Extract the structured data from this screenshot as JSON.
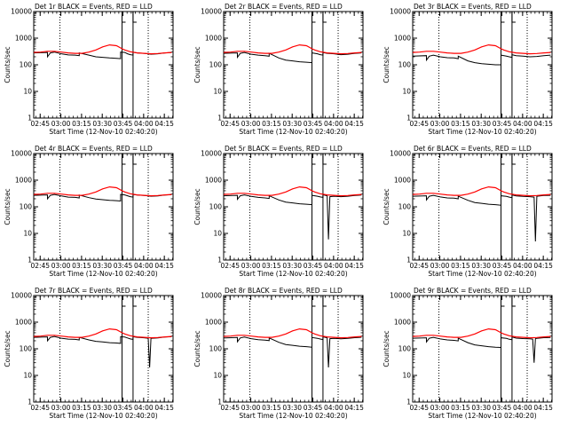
{
  "figure": {
    "panel_titles": [
      "Det 1r BLACK = Events, RED = LLD",
      "Det 2r BLACK = Events, RED = LLD",
      "Det 3r BLACK = Events, RED = LLD",
      "Det 4r BLACK = Events, RED = LLD",
      "Det 5r BLACK = Events, RED = LLD",
      "Det 6r BLACK = Events, RED = LLD",
      "Det 7r BLACK = Events, RED = LLD",
      "Det 8r BLACK = Events, RED = LLD",
      "Det 9r BLACK = Events, RED = LLD"
    ],
    "xlabel": "Start Time (12-Nov-10 02:40:20)",
    "ylabel": "Counts/sec"
  },
  "colors": {
    "events": "#000000",
    "lld": "#ff0000",
    "background": "#ffffff"
  },
  "chart_data": {
    "type": "line",
    "x_unit": "minutes after 02:40:20 (start time 12-Nov-10 02:40:20)",
    "x_ticks": [
      4.67,
      19.67,
      34.67,
      49.67,
      64.67,
      79.67,
      94.67
    ],
    "x_tick_labels": [
      "02:45",
      "03:00",
      "03:15",
      "03:30",
      "03:45",
      "04:00",
      "04:15"
    ],
    "xlim": [
      0,
      101
    ],
    "y_scale": "log",
    "ylim": [
      1,
      10000
    ],
    "y_ticks": [
      1,
      10,
      100,
      1000,
      10000
    ],
    "y_tick_labels": [
      "1",
      "10",
      "100",
      "1000",
      "10000"
    ],
    "dotted_vertical_lines_x": [
      19,
      83
    ],
    "solid_vertical_lines_x": [
      64,
      72
    ],
    "lld_series": {
      "name": "RED = LLD",
      "x": [
        0,
        5,
        10,
        15,
        20,
        25,
        30,
        35,
        40,
        45,
        50,
        55,
        60,
        64,
        66,
        70,
        75,
        80,
        85,
        90,
        95,
        100
      ],
      "y": [
        290,
        300,
        320,
        320,
        300,
        280,
        270,
        270,
        300,
        360,
        470,
        560,
        520,
        400,
        360,
        310,
        280,
        270,
        260,
        265,
        280,
        290
      ]
    },
    "panels": [
      {
        "name": "Det 1r",
        "events_x": [
          0,
          10,
          10,
          12,
          15,
          20,
          25,
          30,
          33,
          33,
          40,
          45,
          50,
          55,
          60,
          63,
          63,
          66,
          68,
          70,
          72,
          72,
          75,
          80,
          85,
          90,
          95,
          100
        ],
        "events_y": [
          280,
          290,
          200,
          280,
          300,
          260,
          235,
          230,
          220,
          280,
          230,
          200,
          190,
          180,
          175,
          170,
          300,
          290,
          260,
          240,
          230,
          300,
          280,
          270,
          250,
          260,
          280,
          290
        ]
      },
      {
        "name": "Det 2r",
        "events_x": [
          0,
          10,
          10,
          12,
          15,
          20,
          25,
          30,
          33,
          33,
          40,
          45,
          50,
          55,
          60,
          64,
          64,
          68,
          70,
          72,
          72,
          75,
          80,
          85,
          90,
          95,
          100
        ],
        "events_y": [
          270,
          280,
          190,
          270,
          290,
          250,
          230,
          220,
          210,
          270,
          180,
          150,
          140,
          130,
          125,
          120,
          280,
          260,
          240,
          230,
          290,
          270,
          260,
          240,
          250,
          270,
          280
        ]
      },
      {
        "name": "Det 3r",
        "events_x": [
          0,
          10,
          10,
          12,
          15,
          20,
          25,
          30,
          33,
          33,
          40,
          45,
          50,
          55,
          60,
          64,
          64,
          68,
          70,
          72,
          72,
          75,
          80,
          85,
          90,
          95,
          100
        ],
        "events_y": [
          210,
          220,
          150,
          210,
          230,
          200,
          185,
          180,
          170,
          210,
          140,
          120,
          110,
          105,
          100,
          100,
          230,
          210,
          200,
          190,
          240,
          220,
          210,
          200,
          205,
          220,
          230
        ]
      },
      {
        "name": "Det 4r",
        "events_x": [
          0,
          10,
          10,
          12,
          15,
          20,
          25,
          30,
          33,
          33,
          40,
          45,
          50,
          55,
          60,
          63,
          63,
          66,
          68,
          70,
          72,
          72,
          75,
          80,
          85,
          90,
          95,
          100
        ],
        "events_y": [
          270,
          280,
          200,
          270,
          290,
          255,
          230,
          225,
          215,
          275,
          220,
          195,
          185,
          175,
          170,
          165,
          290,
          280,
          260,
          240,
          230,
          290,
          275,
          265,
          250,
          255,
          275,
          285
        ]
      },
      {
        "name": "Det 5r",
        "events_x": [
          0,
          10,
          10,
          12,
          15,
          20,
          25,
          30,
          33,
          33,
          40,
          45,
          50,
          55,
          60,
          64,
          64,
          68,
          70,
          72,
          72,
          75,
          76,
          77,
          80,
          85,
          90,
          95,
          100
        ],
        "events_y": [
          260,
          270,
          190,
          260,
          280,
          245,
          225,
          215,
          205,
          260,
          180,
          150,
          140,
          130,
          125,
          120,
          270,
          250,
          235,
          225,
          285,
          260,
          6,
          240,
          250,
          240,
          250,
          265,
          275
        ]
      },
      {
        "name": "Det 6r",
        "events_x": [
          0,
          10,
          10,
          12,
          15,
          20,
          25,
          30,
          33,
          33,
          40,
          45,
          50,
          55,
          60,
          64,
          64,
          68,
          70,
          72,
          72,
          75,
          80,
          85,
          88,
          89,
          90,
          95,
          100
        ],
        "events_y": [
          250,
          260,
          180,
          250,
          270,
          235,
          215,
          210,
          200,
          250,
          175,
          145,
          135,
          125,
          120,
          115,
          260,
          245,
          230,
          220,
          280,
          255,
          245,
          240,
          230,
          5,
          250,
          265,
          270
        ]
      },
      {
        "name": "Det 7r",
        "events_x": [
          0,
          10,
          10,
          12,
          15,
          20,
          25,
          30,
          33,
          33,
          40,
          45,
          50,
          55,
          60,
          63,
          63,
          66,
          68,
          70,
          72,
          72,
          75,
          80,
          83,
          84,
          85,
          90,
          95,
          100
        ],
        "events_y": [
          270,
          280,
          200,
          270,
          290,
          250,
          230,
          225,
          215,
          270,
          215,
          190,
          180,
          170,
          165,
          160,
          285,
          275,
          255,
          235,
          225,
          285,
          270,
          260,
          250,
          20,
          245,
          255,
          275,
          285
        ]
      },
      {
        "name": "Det 8r",
        "events_x": [
          0,
          10,
          10,
          12,
          15,
          20,
          25,
          30,
          33,
          33,
          40,
          45,
          50,
          55,
          60,
          64,
          64,
          68,
          70,
          72,
          72,
          75,
          76,
          77,
          80,
          85,
          90,
          95,
          100
        ],
        "events_y": [
          255,
          265,
          185,
          255,
          275,
          240,
          220,
          212,
          202,
          255,
          175,
          145,
          135,
          125,
          120,
          115,
          265,
          248,
          232,
          222,
          282,
          258,
          20,
          240,
          248,
          238,
          248,
          262,
          272
        ]
      },
      {
        "name": "Det 9r",
        "events_x": [
          0,
          10,
          10,
          12,
          15,
          20,
          25,
          30,
          33,
          33,
          40,
          45,
          50,
          55,
          60,
          64,
          64,
          68,
          70,
          72,
          72,
          75,
          80,
          85,
          87,
          88,
          89,
          90,
          95,
          100
        ],
        "events_y": [
          250,
          260,
          180,
          250,
          270,
          235,
          215,
          208,
          198,
          250,
          170,
          140,
          130,
          120,
          115,
          112,
          260,
          245,
          228,
          218,
          278,
          252,
          242,
          236,
          230,
          30,
          240,
          248,
          262,
          268
        ]
      }
    ],
    "title": "",
    "grid": false
  }
}
